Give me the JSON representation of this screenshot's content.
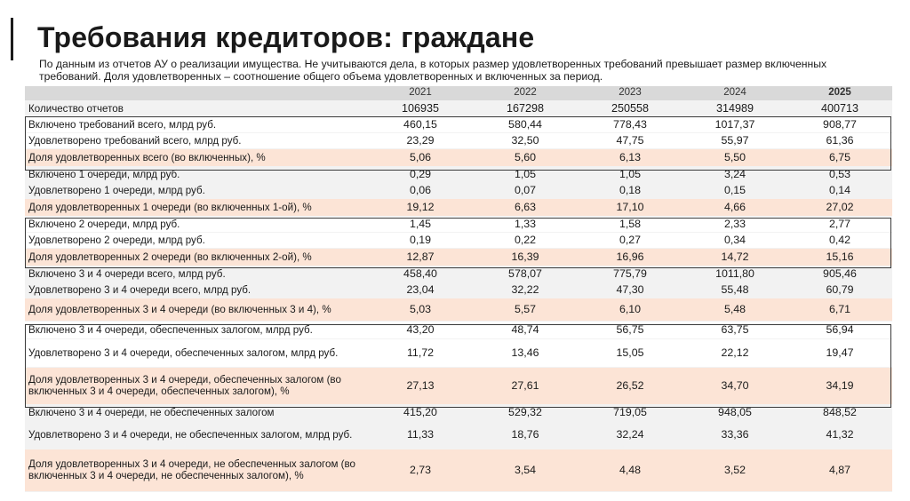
{
  "title": "Требования кредиторов: граждане",
  "subtitle": "По данным из отчетов АУ о реализации  имущества. Не учитываются дела, в которых размер удовлетворенных требований превышает размер включенных требований. Доля удовлетворенных  – соотношение общего объема удовлетворенных и включенных за период.",
  "years": [
    "2021",
    "2022",
    "2023",
    "2024",
    "2025"
  ],
  "rows": [
    {
      "label": "Количество отчетов",
      "values": [
        "106935",
        "167298",
        "250558",
        "314989",
        "400713"
      ]
    },
    {
      "label": "Включено требований всего, млрд руб.",
      "values": [
        "460,15",
        "580,44",
        "778,43",
        "1017,37",
        "908,77"
      ]
    },
    {
      "label": "Удовлетворено требований всего, млрд руб.",
      "values": [
        "23,29",
        "32,50",
        "47,75",
        "55,97",
        "61,36"
      ]
    },
    {
      "label": "Доля удовлетворенных всего (во включенных), %",
      "values": [
        "5,06",
        "5,60",
        "6,13",
        "5,50",
        "6,75"
      ]
    },
    {
      "label": "Включено 1 очереди, млрд руб.",
      "values": [
        "0,29",
        "1,05",
        "1,05",
        "3,24",
        "0,53"
      ]
    },
    {
      "label": "Удовлетворено 1 очереди, млрд руб.",
      "values": [
        "0,06",
        "0,07",
        "0,18",
        "0,15",
        "0,14"
      ]
    },
    {
      "label": "Доля удовлетворенных 1 очереди (во включенных 1-ой), %",
      "values": [
        "19,12",
        "6,63",
        "17,10",
        "4,66",
        "27,02"
      ]
    },
    {
      "label": "Включено 2 очереди, млрд руб.",
      "values": [
        "1,45",
        "1,33",
        "1,58",
        "2,33",
        "2,77"
      ]
    },
    {
      "label": "Удовлетворено 2 очереди, млрд руб.",
      "values": [
        "0,19",
        "0,22",
        "0,27",
        "0,34",
        "0,42"
      ]
    },
    {
      "label": "Доля удовлетворенных 2 очереди (во включенных 2-ой), %",
      "values": [
        "12,87",
        "16,39",
        "16,96",
        "14,72",
        "15,16"
      ]
    },
    {
      "label": "Включено 3 и 4 очереди всего, млрд руб.",
      "values": [
        "458,40",
        "578,07",
        "775,79",
        "1011,80",
        "905,46"
      ]
    },
    {
      "label": "Удовлетворено 3 и 4 очереди всего, млрд руб.",
      "values": [
        "23,04",
        "32,22",
        "47,30",
        "55,48",
        "60,79"
      ]
    },
    {
      "label": "Доля удовлетворенных 3 и 4 очереди (во включенных 3 и 4), %",
      "values": [
        "5,03",
        "5,57",
        "6,10",
        "5,48",
        "6,71"
      ]
    },
    {
      "label": "Включено 3 и 4 очереди, обеспеченных залогом, млрд руб.",
      "values": [
        "43,20",
        "48,74",
        "56,75",
        "63,75",
        "56,94"
      ]
    },
    {
      "label": "Удовлетворено 3 и 4 очереди, обеспеченных залогом, млрд руб.",
      "values": [
        "11,72",
        "13,46",
        "15,05",
        "22,12",
        "19,47"
      ]
    },
    {
      "label": "Доля удовлетворенных 3 и 4 очереди, обеспеченных залогом (во включенных 3 и 4 очереди, обеспеченных залогом), %",
      "values": [
        "27,13",
        "27,61",
        "26,52",
        "34,70",
        "34,19"
      ]
    },
    {
      "label": "Включено 3 и 4 очереди, не обеспеченных залогом",
      "values": [
        "415,20",
        "529,32",
        "719,05",
        "948,05",
        "848,52"
      ]
    },
    {
      "label": "Удовлетворено 3 и 4 очереди, не обеспеченных залогом, млрд руб.",
      "values": [
        "11,33",
        "18,76",
        "32,24",
        "33,36",
        "41,32"
      ]
    },
    {
      "label": "Доля удовлетворенных 3 и 4 очереди, не обеспеченных залогом (во включенных 3 и 4 очереди, не обеспеченных залогом), %",
      "values": [
        "2,73",
        "3,54",
        "4,48",
        "3,52",
        "4,87"
      ]
    }
  ]
}
